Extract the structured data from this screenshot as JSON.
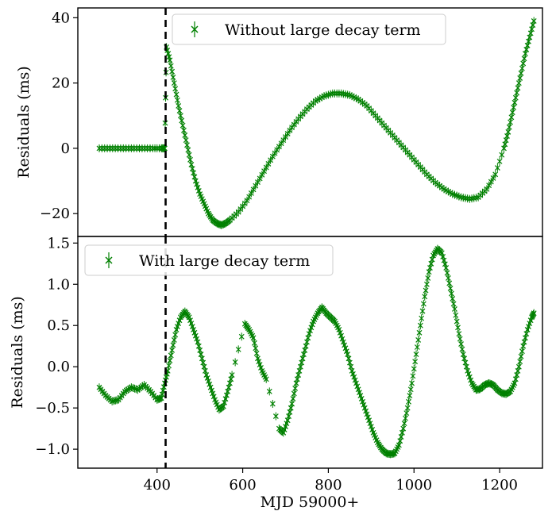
{
  "chart_data": [
    {
      "type": "scatter",
      "panel": "top",
      "ylabel": "Residuals (ms)",
      "ylim": [
        -27,
        43
      ],
      "yticks": [
        -20,
        0,
        20,
        40
      ],
      "ytick_labels": [
        "−20",
        "0",
        "20",
        "40"
      ],
      "marker": "x with error bars",
      "color": "#008000",
      "legend": {
        "label": "Without large decay term",
        "placement": "top-center"
      },
      "vline": {
        "x": 420,
        "style": "dashed",
        "color": "#000000"
      },
      "series": [
        {
          "name": "Without large decay term",
          "x": [
            265,
            290,
            315,
            340,
            365,
            390,
            410,
            418,
            422,
            430,
            440,
            450,
            460,
            470,
            480,
            490,
            500,
            510,
            520,
            530,
            540,
            550,
            560,
            570,
            590,
            610,
            630,
            650,
            670,
            690,
            710,
            730,
            750,
            770,
            790,
            810,
            830,
            850,
            870,
            890,
            910,
            930,
            950,
            970,
            990,
            1010,
            1030,
            1050,
            1070,
            1090,
            1110,
            1130,
            1150,
            1170,
            1190,
            1210,
            1220,
            1230,
            1240,
            1250,
            1260,
            1270,
            1280
          ],
          "y": [
            0,
            0,
            0,
            0,
            0,
            0,
            0,
            0,
            31,
            27,
            20,
            13,
            7,
            1,
            -5,
            -10,
            -14,
            -17,
            -20,
            -22,
            -23,
            -23.5,
            -23,
            -22,
            -19.5,
            -16,
            -11.5,
            -7,
            -2.5,
            1.5,
            5.5,
            9,
            12,
            14.5,
            16,
            16.8,
            16.8,
            16.3,
            15,
            13,
            10,
            7,
            4,
            1,
            -2,
            -5,
            -8,
            -10.5,
            -12.5,
            -14,
            -15,
            -15.5,
            -15,
            -12.5,
            -8,
            0,
            5,
            11,
            17,
            23,
            29,
            34,
            39
          ]
        }
      ]
    },
    {
      "type": "scatter",
      "panel": "bottom",
      "xlabel": "MJD 59000+",
      "ylabel": "Residuals (ms)",
      "xlim": [
        215,
        1300
      ],
      "ylim": [
        -1.23,
        1.58
      ],
      "xticks": [
        400,
        600,
        800,
        1000,
        1200
      ],
      "xtick_labels": [
        "400",
        "600",
        "800",
        "1000",
        "1200"
      ],
      "yticks": [
        -1.0,
        -0.5,
        0.0,
        0.5,
        1.0,
        1.5
      ],
      "ytick_labels": [
        "−1.0",
        "−0.5",
        "0.0",
        "0.5",
        "1.0",
        "1.5"
      ],
      "marker": "x with error bars",
      "color": "#008000",
      "legend": {
        "label": "With large decay term",
        "placement": "top-left"
      },
      "vline": {
        "x": 420,
        "style": "dashed",
        "color": "#000000"
      },
      "series": [
        {
          "name": "With large decay term",
          "x": [
            265,
            280,
            295,
            310,
            325,
            340,
            355,
            370,
            385,
            400,
            410,
            418,
            425,
            435,
            445,
            455,
            465,
            475,
            485,
            495,
            505,
            515,
            525,
            535,
            545,
            555,
            565,
            575,
            605,
            615,
            625,
            635,
            645,
            655,
            685,
            695,
            705,
            715,
            725,
            735,
            745,
            755,
            765,
            775,
            785,
            795,
            805,
            815,
            825,
            835,
            845,
            855,
            865,
            875,
            885,
            895,
            905,
            915,
            925,
            935,
            945,
            955,
            965,
            975,
            985,
            995,
            1005,
            1015,
            1025,
            1035,
            1045,
            1055,
            1065,
            1075,
            1085,
            1095,
            1105,
            1115,
            1125,
            1135,
            1145,
            1155,
            1165,
            1175,
            1185,
            1195,
            1205,
            1215,
            1225,
            1235,
            1245,
            1255,
            1265,
            1275,
            1280
          ],
          "y": [
            -0.25,
            -0.35,
            -0.42,
            -0.4,
            -0.3,
            -0.25,
            -0.28,
            -0.22,
            -0.3,
            -0.4,
            -0.38,
            -0.2,
            -0.05,
            0.2,
            0.45,
            0.6,
            0.67,
            0.6,
            0.45,
            0.3,
            0.1,
            -0.1,
            -0.25,
            -0.4,
            -0.52,
            -0.48,
            -0.3,
            -0.1,
            0.52,
            0.45,
            0.35,
            0.1,
            -0.05,
            -0.15,
            -0.75,
            -0.8,
            -0.65,
            -0.45,
            -0.2,
            0.0,
            0.2,
            0.4,
            0.55,
            0.65,
            0.72,
            0.65,
            0.6,
            0.55,
            0.45,
            0.3,
            0.15,
            -0.05,
            -0.2,
            -0.35,
            -0.5,
            -0.65,
            -0.8,
            -0.92,
            -1.0,
            -1.05,
            -1.06,
            -1.05,
            -0.95,
            -0.75,
            -0.5,
            -0.2,
            0.15,
            0.5,
            0.85,
            1.15,
            1.35,
            1.43,
            1.38,
            1.2,
            0.95,
            0.7,
            0.4,
            0.15,
            -0.05,
            -0.2,
            -0.28,
            -0.27,
            -0.22,
            -0.2,
            -0.22,
            -0.28,
            -0.32,
            -0.33,
            -0.3,
            -0.2,
            0.0,
            0.25,
            0.45,
            0.6,
            0.65
          ]
        }
      ]
    }
  ]
}
